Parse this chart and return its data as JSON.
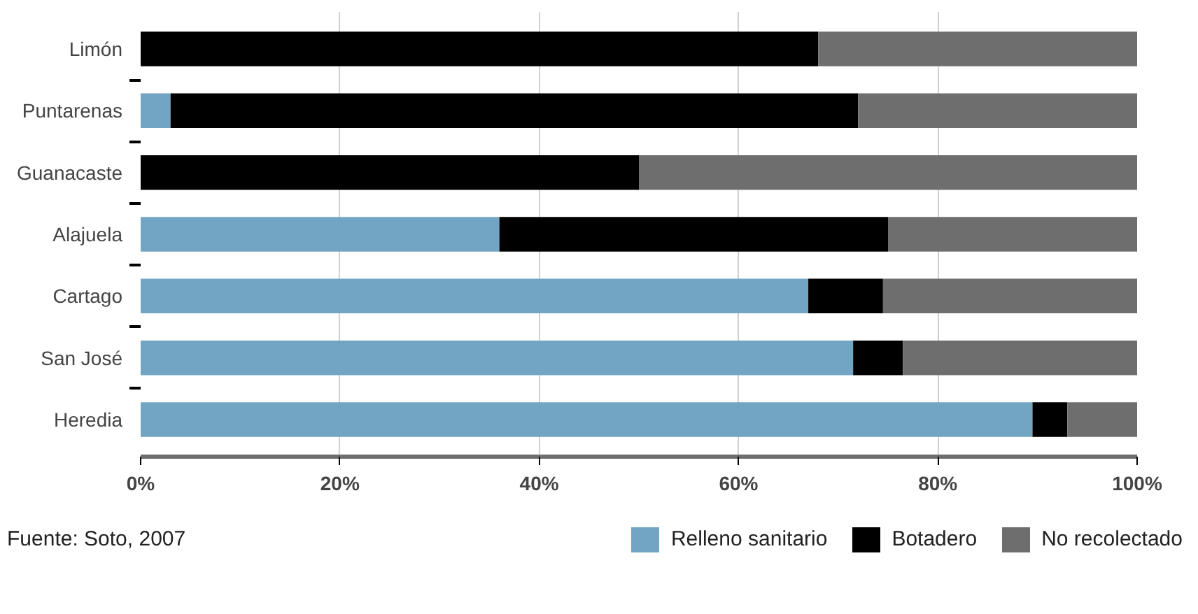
{
  "chart_data": {
    "type": "bar",
    "orientation": "horizontal",
    "stacked": true,
    "categories": [
      "Limón",
      "Puntarenas",
      "Guanacaste",
      "Alajuela",
      "Cartago",
      "San José",
      "Heredia"
    ],
    "series": [
      {
        "name": "Relleno sanitario",
        "color": "#72a5c3",
        "values": [
          0,
          3,
          0,
          36,
          67,
          71.5,
          89.5
        ]
      },
      {
        "name": "Botadero",
        "color": "#000000",
        "values": [
          68,
          69,
          50,
          39,
          7.5,
          5,
          3.5
        ]
      },
      {
        "name": "No recolectado",
        "color": "#6e6e6e",
        "values": [
          32,
          28,
          50,
          25,
          25.5,
          23.5,
          7
        ]
      }
    ],
    "xlim": [
      0,
      100
    ],
    "xticks": [
      {
        "value": 0,
        "label": "0%"
      },
      {
        "value": 20,
        "label": "20%"
      },
      {
        "value": 40,
        "label": "40%"
      },
      {
        "value": 60,
        "label": "60%"
      },
      {
        "value": 80,
        "label": "80%"
      },
      {
        "value": 100,
        "label": "100%"
      }
    ],
    "grid": "x",
    "legend": "bottom right",
    "annotations": [
      "Fuente: Soto, 2007"
    ]
  }
}
